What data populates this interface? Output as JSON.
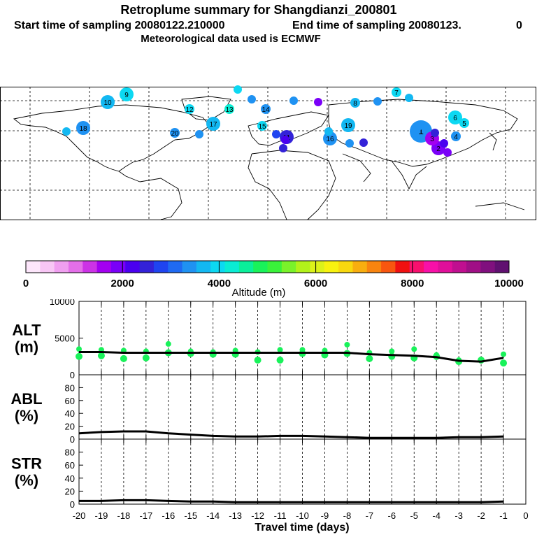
{
  "header": {
    "title": "Retroplume summary for Shangdianzi_200801",
    "start_label": "Start time of sampling 20080122.210000",
    "end_label": "End time of sampling 20080123.",
    "end_value": "0",
    "met_label": "Meteorological data used is ECMWF"
  },
  "colorbar": {
    "colors": [
      "#fde6fb",
      "#f8c6f5",
      "#f09ff0",
      "#e46fe9",
      "#cc33e6",
      "#a300f0",
      "#7a00f8",
      "#4a00f0",
      "#3322d8",
      "#1f44f0",
      "#1f6af2",
      "#1f92f2",
      "#13b8f2",
      "#0cd8f2",
      "#0aecd4",
      "#0aef9a",
      "#19f25a",
      "#3af23a",
      "#7af22a",
      "#b2f21a",
      "#dcf21a",
      "#f8f20f",
      "#f8d80f",
      "#f8ae0f",
      "#f8840f",
      "#f8560f",
      "#f01010",
      "#f8106e",
      "#f810a8",
      "#e00f9a",
      "#c00f90",
      "#a00f86",
      "#80107e",
      "#601070"
    ],
    "ticks": [
      "0",
      "2000",
      "4000",
      "6000",
      "8000",
      "10000"
    ],
    "label": "Altitude (m)"
  },
  "map": {
    "plumes": [
      {
        "label": "9",
        "color": "#0cd8f2",
        "size": "m"
      },
      {
        "label": "10",
        "color": "#13b8f2",
        "size": "m"
      },
      {
        "label": "12",
        "color": "#0cd8f2",
        "size": "s"
      },
      {
        "label": "13",
        "color": "#0aecd4",
        "size": "s"
      },
      {
        "label": "14",
        "color": "#1f92f2",
        "size": "s"
      },
      {
        "label": "15",
        "color": "#0cd8f2",
        "size": "s"
      },
      {
        "label": "16",
        "color": "#1f92f2",
        "size": "m"
      },
      {
        "label": "17",
        "color": "#13b8f2",
        "size": "m"
      },
      {
        "label": "18",
        "color": "#1f92f2",
        "size": "m"
      },
      {
        "label": "19",
        "color": "#13b8f2",
        "size": "m"
      },
      {
        "label": "20",
        "color": "#1f92f2",
        "size": "s"
      },
      {
        "label": "5",
        "color": "#0cd8f2",
        "size": "s"
      },
      {
        "label": "6",
        "color": "#0cd8f2",
        "size": "m"
      },
      {
        "label": "7",
        "color": "#0cd8f2",
        "size": "s"
      },
      {
        "label": "1",
        "color": "#1f92f2",
        "size": "l"
      },
      {
        "label": "2",
        "color": "#7a00f8",
        "size": "m"
      },
      {
        "label": "3",
        "color": "#a300f0",
        "size": "m"
      },
      {
        "label": "4",
        "color": "#1f92f2",
        "size": "s"
      },
      {
        "label": "8",
        "color": "#13b8f2",
        "size": "s"
      },
      {
        "label": "11",
        "color": "#3322d8",
        "size": "m"
      }
    ]
  },
  "chart_data": {
    "type": "line",
    "x": [
      -20,
      -19,
      -18,
      -17,
      -16,
      -15,
      -14,
      -13,
      -12,
      -11,
      -10,
      -9,
      -8,
      -7,
      -6,
      -5,
      -4,
      -3,
      -2,
      -1
    ],
    "xlabel": "Travel time (days)",
    "xlim": [
      -20,
      0
    ],
    "xticks": [
      "-20",
      "-19",
      "-18",
      "-17",
      "-16",
      "-15",
      "-14",
      "-13",
      "-12",
      "-11",
      "-10",
      "-9",
      "-8",
      "-7",
      "-6",
      "-5",
      "-4",
      "-3",
      "-2",
      "-1",
      "0"
    ],
    "panels": [
      {
        "name": "ALT",
        "ylabel_line1": "ALT",
        "ylabel_line2": "(m)",
        "ylim": [
          0,
          10000
        ],
        "yticks": [
          "0",
          "5000",
          "10000"
        ],
        "line": [
          3100,
          3100,
          3000,
          3000,
          3000,
          3000,
          3000,
          3000,
          3000,
          3000,
          3000,
          3000,
          3000,
          2800,
          2700,
          2600,
          2400,
          1900,
          1800,
          2300
        ],
        "dots": [
          [
            3500,
            2500
          ],
          [
            3400,
            2600
          ],
          [
            3300,
            2200
          ],
          [
            3200,
            2300
          ],
          [
            4200,
            3000
          ],
          [
            3200,
            2900
          ],
          [
            3100,
            2800
          ],
          [
            3300,
            2800
          ],
          [
            3100,
            2000
          ],
          [
            3400,
            2000
          ],
          [
            3400,
            2900
          ],
          [
            3300,
            2700
          ],
          [
            4100,
            2900
          ],
          [
            3000,
            2200
          ],
          [
            3200,
            2500
          ],
          [
            3500,
            2300
          ],
          [
            2700,
            2500
          ],
          [
            2000,
            1800
          ],
          [
            1900,
            2000
          ],
          [
            2800,
            1600
          ]
        ],
        "dot_color": "#19f25a"
      },
      {
        "name": "ABL",
        "ylabel_line1": "ABL",
        "ylabel_line2": "(%)",
        "ylim": [
          0,
          100
        ],
        "yticks": [
          "0",
          "20",
          "40",
          "60",
          "80"
        ],
        "line": [
          9,
          11,
          12,
          12,
          9,
          7,
          5,
          4,
          4,
          5,
          5,
          4,
          3,
          2,
          2,
          2,
          2,
          3,
          3,
          4
        ]
      },
      {
        "name": "STR",
        "ylabel_line1": "STR",
        "ylabel_line2": "(%)",
        "ylim": [
          0,
          100
        ],
        "yticks": [
          "0",
          "20",
          "40",
          "60",
          "80"
        ],
        "line": [
          5,
          5,
          6,
          6,
          5,
          4,
          4,
          3,
          3,
          3,
          3,
          3,
          3,
          3,
          3,
          3,
          3,
          3,
          3,
          4
        ]
      }
    ]
  }
}
